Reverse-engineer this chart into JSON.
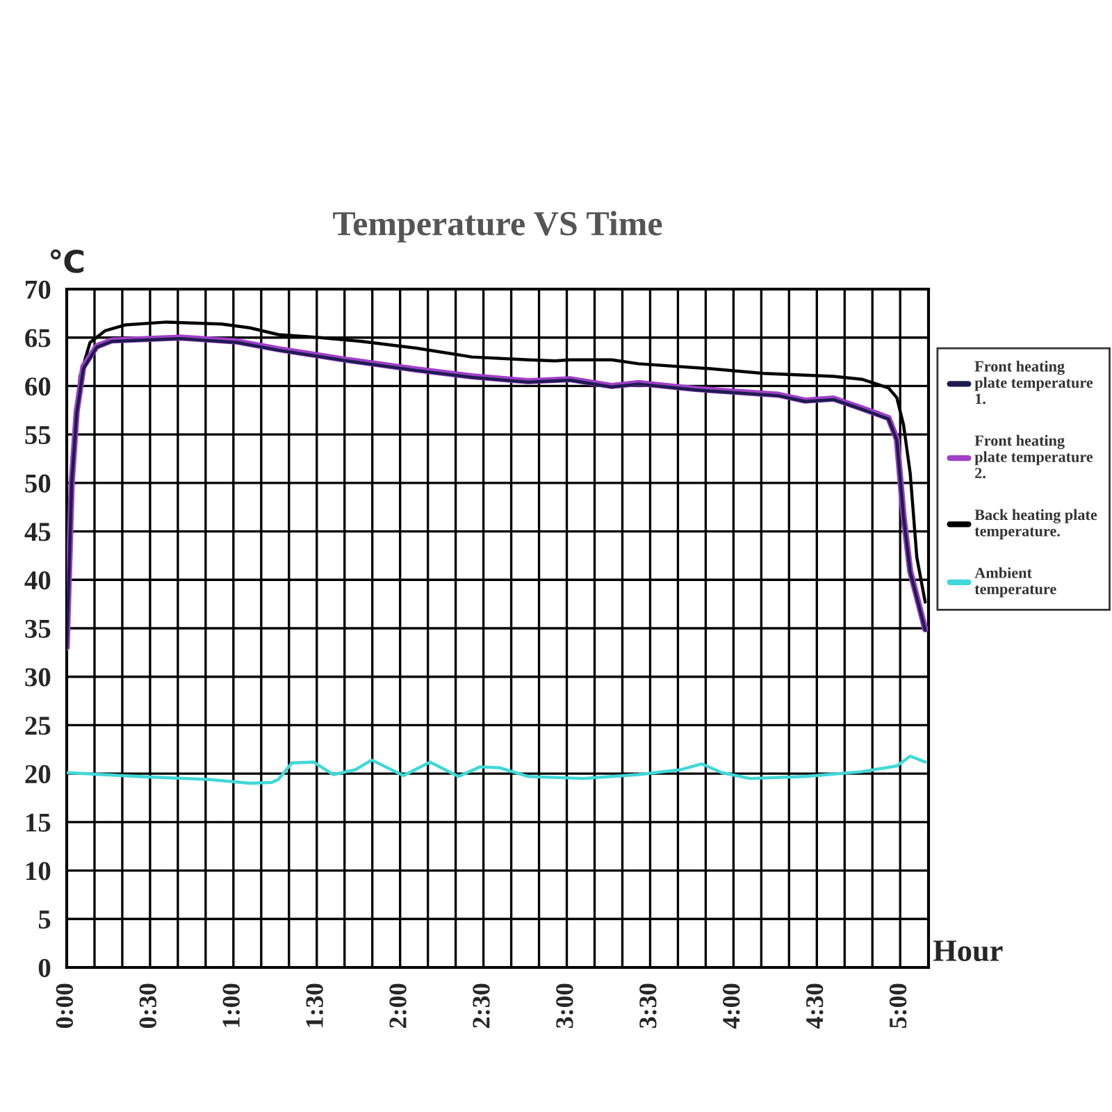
{
  "chart_data": {
    "type": "line",
    "title": "Temperature VS Time",
    "xlabel": "Hour",
    "ylabel": "℃",
    "xlim": [
      0,
      5.17
    ],
    "ylim": [
      0,
      70
    ],
    "xticks": [
      {
        "value": 0,
        "label": "0:00"
      },
      {
        "value": 0.1667,
        "label": null
      },
      {
        "value": 0.3333,
        "label": null
      },
      {
        "value": 0.5,
        "label": "0:30"
      },
      {
        "value": 0.6667,
        "label": null
      },
      {
        "value": 0.8333,
        "label": null
      },
      {
        "value": 1,
        "label": "1:00"
      },
      {
        "value": 1.1667,
        "label": null
      },
      {
        "value": 1.3333,
        "label": null
      },
      {
        "value": 1.5,
        "label": "1:30"
      },
      {
        "value": 1.6667,
        "label": null
      },
      {
        "value": 1.8333,
        "label": null
      },
      {
        "value": 2,
        "label": "2:00"
      },
      {
        "value": 2.1667,
        "label": null
      },
      {
        "value": 2.3333,
        "label": null
      },
      {
        "value": 2.5,
        "label": "2:30"
      },
      {
        "value": 2.6667,
        "label": null
      },
      {
        "value": 2.8333,
        "label": null
      },
      {
        "value": 3,
        "label": "3:00"
      },
      {
        "value": 3.1667,
        "label": null
      },
      {
        "value": 3.3333,
        "label": null
      },
      {
        "value": 3.5,
        "label": "3:30"
      },
      {
        "value": 3.6667,
        "label": null
      },
      {
        "value": 3.8333,
        "label": null
      },
      {
        "value": 4,
        "label": "4:00"
      },
      {
        "value": 4.1667,
        "label": null
      },
      {
        "value": 4.3333,
        "label": null
      },
      {
        "value": 4.5,
        "label": "4:30"
      },
      {
        "value": 4.6667,
        "label": null
      },
      {
        "value": 4.8333,
        "label": null
      },
      {
        "value": 5,
        "label": "5:00"
      }
    ],
    "yticks": [
      0,
      5,
      10,
      15,
      20,
      25,
      30,
      35,
      40,
      45,
      50,
      55,
      60,
      65,
      70
    ],
    "grid": true,
    "legend": "right",
    "marker": "none",
    "line_style": "solid",
    "series": [
      {
        "name": "Back heating plate temperature.",
        "color": "#000000",
        "x": [
          0,
          0.03,
          0.08,
          0.14,
          0.23,
          0.35,
          0.6,
          0.93,
          1.1,
          1.27,
          1.52,
          1.77,
          2.1,
          2.43,
          2.77,
          2.93,
          3.02,
          3.27,
          3.43,
          3.85,
          4.18,
          4.6,
          4.77,
          4.93,
          4.98,
          5.02,
          5.06,
          5.1,
          5.15
        ],
        "values": [
          33,
          52,
          61,
          64.5,
          65.7,
          66.3,
          66.6,
          66.4,
          66,
          65.3,
          65,
          64.6,
          63.9,
          63,
          62.7,
          62.6,
          62.7,
          62.7,
          62.3,
          61.8,
          61.3,
          61,
          60.7,
          59.8,
          58.8,
          56,
          51,
          42.3,
          37.7
        ]
      },
      {
        "name": "Front heating plate temperature 2.",
        "color": "#a040c8",
        "x": [
          0,
          0.03,
          0.06,
          0.1,
          0.18,
          0.27,
          0.68,
          1.02,
          1.27,
          1.68,
          2.1,
          2.43,
          2.77,
          3.02,
          3.27,
          3.43,
          3.77,
          3.93,
          4.27,
          4.43,
          4.6,
          4.77,
          4.93,
          4.98,
          5.02,
          5.06,
          5.15
        ],
        "values": [
          33,
          50,
          57.4,
          62,
          64.1,
          64.7,
          65,
          64.6,
          63.8,
          62.7,
          61.7,
          61,
          60.5,
          60.7,
          60,
          60.3,
          59.7,
          59.5,
          59.1,
          58.5,
          58.7,
          57.7,
          56.7,
          54.5,
          46.6,
          40.9,
          34.9
        ]
      },
      {
        "name": "Front heating plate temperature 1.",
        "color": "#1c1c50",
        "x": [
          0,
          0.03,
          0.06,
          0.1,
          0.18,
          0.27,
          0.68,
          1.02,
          1.27,
          1.68,
          2.1,
          2.43,
          2.77,
          3.02,
          3.27,
          3.43,
          3.77,
          3.93,
          4.27,
          4.43,
          4.6,
          4.77,
          4.93,
          4.98,
          5.02,
          5.06,
          5.15
        ],
        "values": [
          33,
          50,
          57.2,
          61.8,
          64,
          64.6,
          64.9,
          64.5,
          63.7,
          62.6,
          61.6,
          60.9,
          60.4,
          60.6,
          59.9,
          60.2,
          59.6,
          59.4,
          59,
          58.4,
          58.6,
          57.6,
          56.6,
          54.4,
          46.5,
          40.8,
          34.8
        ]
      },
      {
        "name": "Ambient temperature",
        "color": "#40d8d8",
        "x": [
          0,
          0.43,
          0.85,
          1.1,
          1.23,
          1.27,
          1.35,
          1.48,
          1.6,
          1.73,
          1.83,
          2.02,
          2.18,
          2.35,
          2.48,
          2.6,
          2.77,
          3.1,
          3.43,
          3.68,
          3.81,
          3.93,
          4.1,
          4.43,
          4.77,
          4.98,
          5.06,
          5.15
        ],
        "values": [
          20.1,
          19.7,
          19.4,
          19,
          19.1,
          19.4,
          21.1,
          21.2,
          19.9,
          20.4,
          21.4,
          19.8,
          21.2,
          19.7,
          20.7,
          20.6,
          19.7,
          19.5,
          19.9,
          20.4,
          21,
          20.1,
          19.5,
          19.7,
          20.2,
          20.8,
          21.8,
          21.2
        ]
      }
    ]
  }
}
